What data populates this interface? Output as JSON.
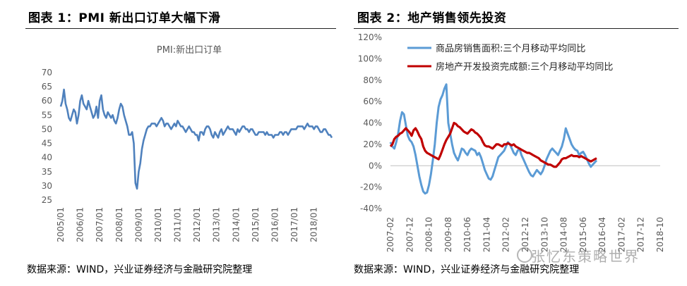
{
  "watermark": "张忆东策略世界",
  "chart_data": [
    {
      "type": "line",
      "figure_title": "图表 1：PMI 新出口订单大幅下滑",
      "title": "PMI:新出口订单",
      "source": "数据来源：WIND，兴业证券经济与金融研究院整理",
      "xlabel": "",
      "ylabel": "",
      "ylim": [
        25,
        70
      ],
      "yticks": [
        25,
        30,
        35,
        40,
        45,
        50,
        55,
        60,
        65,
        70
      ],
      "xticks": [
        "2005/01",
        "2006/01",
        "2007/01",
        "2008/01",
        "2009/01",
        "2010/01",
        "2011/01",
        "2012/01",
        "2013/01",
        "2014/01",
        "2015/01",
        "2016/01",
        "2017/01",
        "2018/01"
      ],
      "x_start": "2005/01",
      "x_end": "2018/12",
      "series": [
        {
          "name": "PMI:新出口订单",
          "color": "#4f81bd",
          "start": "2005/01",
          "values": [
            58,
            60,
            64,
            59,
            57,
            54,
            53,
            55,
            57,
            56,
            52,
            55,
            60,
            62,
            59,
            58,
            57,
            60,
            58,
            56,
            54,
            55,
            58,
            54,
            60,
            62,
            57,
            55,
            54,
            56,
            55,
            54,
            55,
            53,
            52,
            54,
            57,
            59,
            58,
            55,
            53,
            51,
            48,
            48,
            49,
            45,
            31,
            29,
            35,
            38,
            43,
            46,
            48,
            50,
            51,
            51,
            52,
            52,
            52,
            51,
            52,
            53,
            54,
            53,
            51,
            52,
            52,
            51,
            50,
            51,
            52,
            51,
            53,
            52,
            51,
            51,
            50,
            49,
            50,
            51,
            50,
            49,
            49,
            48,
            48,
            46,
            49,
            49,
            48,
            50,
            51,
            51,
            50,
            48,
            47,
            49,
            48,
            47,
            49,
            50,
            48,
            49,
            50,
            51,
            50,
            50,
            50,
            49,
            48,
            50,
            49,
            50,
            51,
            51,
            50,
            50,
            49,
            50,
            50,
            49,
            48,
            48,
            49,
            49,
            49,
            49,
            48,
            49,
            48,
            48,
            48,
            47,
            48,
            48,
            48,
            49,
            49,
            48,
            49,
            49,
            48,
            49,
            50,
            50,
            50,
            50,
            51,
            51,
            51,
            51,
            50,
            51,
            52,
            51,
            51,
            51,
            50,
            51,
            51,
            50,
            49,
            49,
            50,
            50,
            49,
            48,
            48,
            47
          ]
        }
      ]
    },
    {
      "type": "line",
      "figure_title": "图表 2：地产销售领先投资",
      "source": "数据来源：WIND，兴业证券经济与金融研究院整理",
      "xlabel": "",
      "ylabel": "",
      "ylim": [
        -40,
        120
      ],
      "yticks": [
        -40,
        -20,
        0,
        20,
        40,
        60,
        80,
        100,
        120
      ],
      "ytick_format": "percent",
      "legend_position": "top",
      "xticks": [
        "2007-02",
        "2007-12",
        "2008-10",
        "2009-08",
        "2010-06",
        "2011-04",
        "2012-02",
        "2012-12",
        "2013-10",
        "2014-08",
        "2015-06",
        "2016-04",
        "2017-02",
        "2017-12",
        "2018-10"
      ],
      "x_start": "2007-02",
      "x_end": "2018-10",
      "series": [
        {
          "name": "商品房销售面积:三个月移动平均同比",
          "color": "#5b9bd5",
          "start": "2007-02",
          "values": [
            22,
            18,
            16,
            22,
            30,
            42,
            50,
            48,
            38,
            28,
            24,
            22,
            18,
            10,
            0,
            -10,
            -18,
            -24,
            -26,
            -25,
            -18,
            -8,
            5,
            20,
            40,
            55,
            62,
            66,
            72,
            76,
            40,
            30,
            20,
            12,
            8,
            5,
            10,
            16,
            15,
            12,
            10,
            14,
            16,
            15,
            14,
            10,
            12,
            8,
            2,
            -4,
            -8,
            -12,
            -13,
            -10,
            -4,
            2,
            8,
            10,
            12,
            14,
            18,
            22,
            20,
            16,
            12,
            10,
            14,
            16,
            10,
            6,
            2,
            -2,
            -6,
            -9,
            -10,
            -7,
            -4,
            -6,
            -8,
            -5,
            0,
            6,
            10,
            14,
            16,
            14,
            12,
            10,
            14,
            18,
            25,
            35,
            30,
            25,
            20,
            17,
            15,
            14,
            10,
            12,
            13,
            10,
            6,
            2,
            -1,
            1,
            3,
            5
          ]
        },
        {
          "name": "房地产开发投资完成额:三个月移动平均同比",
          "color": "#c00000",
          "start": "2007-02",
          "values": [
            18,
            20,
            25,
            27,
            28,
            30,
            31,
            33,
            35,
            33,
            31,
            28,
            33,
            35,
            32,
            28,
            25,
            18,
            14,
            12,
            11,
            10,
            9,
            8,
            7,
            6,
            10,
            15,
            20,
            24,
            27,
            30,
            35,
            40,
            39,
            37,
            36,
            34,
            32,
            31,
            30,
            32,
            34,
            33,
            31,
            30,
            28,
            26,
            22,
            19,
            18,
            18,
            17,
            16,
            18,
            20,
            20,
            19,
            18,
            20,
            20,
            21,
            20,
            19,
            20,
            18,
            17,
            16,
            15,
            14,
            13,
            12,
            12,
            11,
            10,
            9,
            8,
            7,
            5,
            4,
            3,
            2,
            1,
            1,
            0,
            -1,
            -1,
            1,
            3,
            6,
            7,
            7,
            8,
            9,
            10,
            9,
            9,
            9,
            8,
            9,
            8,
            7,
            6,
            5,
            4,
            5,
            6,
            7
          ]
        }
      ]
    }
  ]
}
